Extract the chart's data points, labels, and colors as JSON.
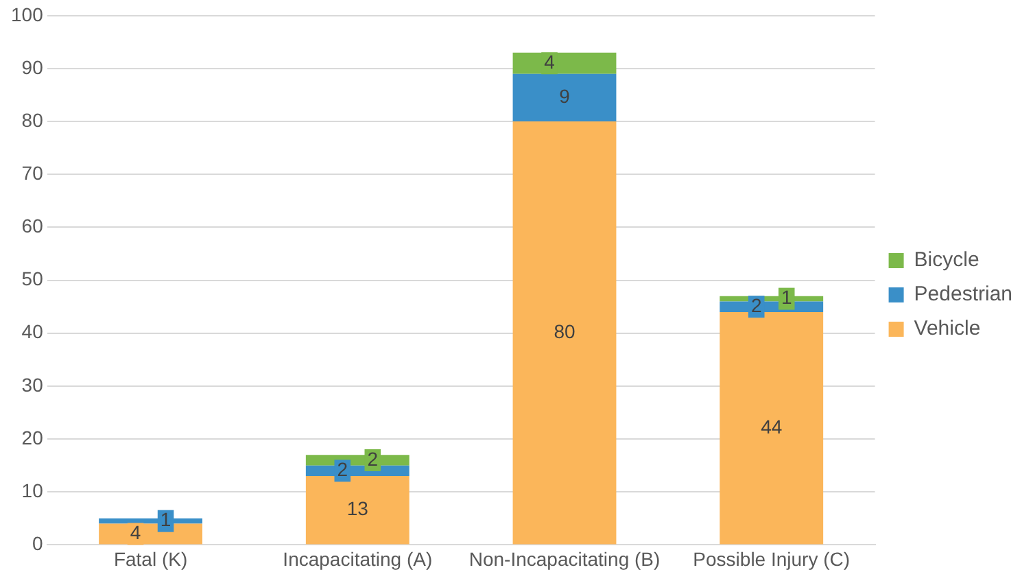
{
  "chart_data": {
    "type": "bar",
    "stacked": true,
    "categories": [
      "Fatal (K)",
      "Incapacitating (A)",
      "Non-Incapacitating (B)",
      "Possible Injury (C)"
    ],
    "series": [
      {
        "name": "Vehicle",
        "color": "#fbb65a",
        "values": [
          4,
          13,
          80,
          44
        ]
      },
      {
        "name": "Pedestrian",
        "color": "#3a8fc8",
        "values": [
          1,
          2,
          9,
          2
        ]
      },
      {
        "name": "Bicycle",
        "color": "#7cb94a",
        "values": [
          null,
          2,
          4,
          1
        ]
      }
    ],
    "ylim": [
      0,
      100
    ],
    "yticks": [
      0,
      10,
      20,
      30,
      40,
      50,
      60,
      70,
      80,
      90,
      100
    ],
    "grid": "y",
    "legend": "right",
    "data_labels": true
  }
}
